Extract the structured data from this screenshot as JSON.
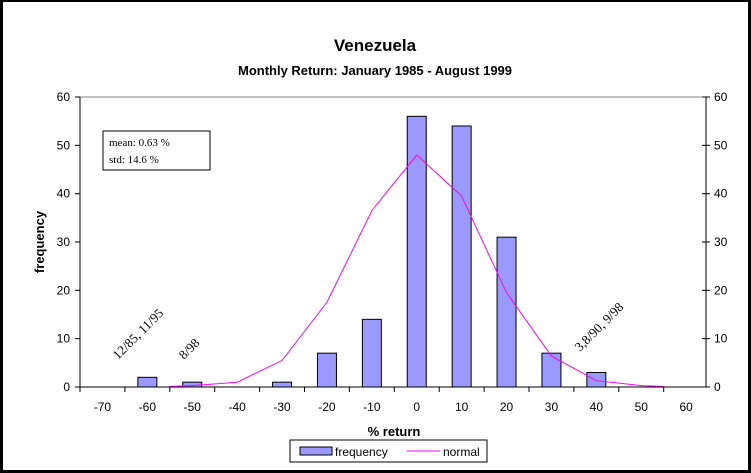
{
  "chart_data": {
    "type": "bar",
    "title": "Venezuela",
    "subtitle": "Monthly Return: January 1985 - August 1999",
    "xlabel": "% return",
    "ylabel": "frequency",
    "ylim": [
      0,
      60
    ],
    "y_ticks": [
      0,
      10,
      20,
      30,
      40,
      50,
      60
    ],
    "y2_ticks": [
      0,
      10,
      20,
      30,
      40,
      50,
      60
    ],
    "categories": [
      "-70",
      "-60",
      "-50",
      "-40",
      "-30",
      "-20",
      "-10",
      "0",
      "10",
      "20",
      "30",
      "40",
      "50",
      "60"
    ],
    "category_values": [
      -70,
      -60,
      -50,
      -40,
      -30,
      -20,
      -10,
      0,
      10,
      20,
      30,
      40,
      50,
      60
    ],
    "grid": false,
    "legend_position": "bottom",
    "series": [
      {
        "name": "frequency",
        "type": "bar",
        "color": "#9999FF",
        "values": [
          0,
          2,
          1,
          0,
          1,
          7,
          14,
          56,
          54,
          31,
          7,
          3,
          0,
          0
        ]
      },
      {
        "name": "normal",
        "type": "line",
        "color": "#FF00FF",
        "x": [
          -55,
          -50,
          -40,
          -30,
          -20,
          -10,
          0,
          10,
          20,
          30,
          40,
          50,
          55
        ],
        "y": [
          0.1,
          0.3,
          1.0,
          5.5,
          17.5,
          36.5,
          48.0,
          39.5,
          19.5,
          6.4,
          1.3,
          0.3,
          0.1
        ]
      }
    ],
    "stats_box": {
      "mean": "mean: 0.63 %",
      "std": "std: 14.6 %"
    },
    "annotations": [
      {
        "text": "12/85, 11/95",
        "x": -60,
        "y": 5
      },
      {
        "text": "8/98",
        "x": -50,
        "y": 5
      },
      {
        "text": "3,8/90, 9/98",
        "x": 40,
        "y": 5
      }
    ]
  }
}
